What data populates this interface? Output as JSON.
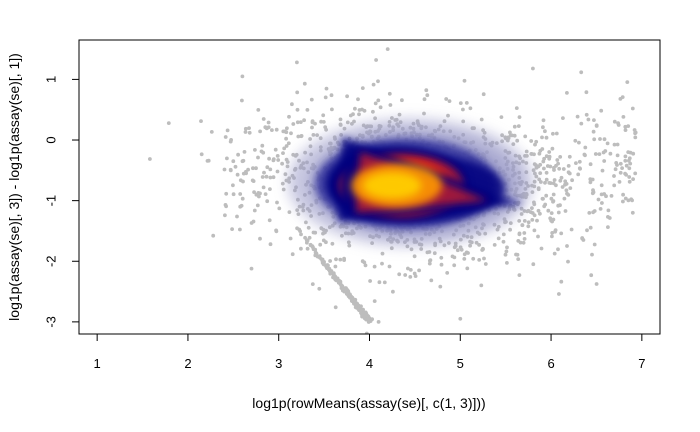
{
  "chart_data": {
    "type": "scatter",
    "style": "smoothScatter-density",
    "title": "",
    "xlabel": "log1p(rowMeans(assay(se)[, c(1, 3)]))",
    "ylabel": "log1p(assay(se)[, 3]) - log1p(assay(se)[, 1])",
    "xlim": [
      0.8,
      7.2
    ],
    "ylim": [
      -3.2,
      1.65
    ],
    "xticks": [
      "1",
      "2",
      "3",
      "4",
      "5",
      "6",
      "7"
    ],
    "yticks": [
      "-3",
      "-2",
      "-1",
      "0",
      "1"
    ],
    "density_core": {
      "x": 4.3,
      "y": -0.75
    },
    "density_colors": [
      "#ffffff",
      "#9a9ac8",
      "#2a2a9a",
      "#00007f",
      "#b81a30",
      "#ff3000",
      "#ff9a00",
      "#ffd000"
    ],
    "outlier_color": "#bdbdbd",
    "grid": false,
    "legend": "none"
  }
}
